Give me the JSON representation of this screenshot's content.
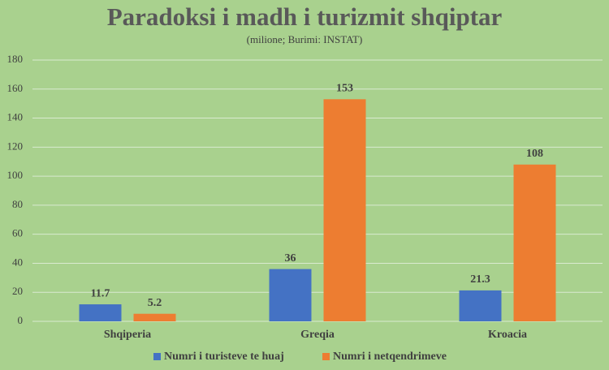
{
  "chart_data": {
    "type": "bar",
    "title": "Paradoksi i madh i turizmit shqiptar",
    "subtitle": "(milione; Burimi: INSTAT)",
    "categories": [
      "Shqiperia",
      "Greqia",
      "Kroacia"
    ],
    "series": [
      {
        "name": "Numri i turisteve te huaj",
        "color": "#4472c4",
        "values": [
          11.7,
          36,
          21.3
        ]
      },
      {
        "name": "Numri i netqendrimeve",
        "color": "#ed7d31",
        "values": [
          5.2,
          153,
          108
        ]
      }
    ],
    "ylim": [
      0,
      180
    ],
    "yticks": [
      0,
      20,
      40,
      60,
      80,
      100,
      120,
      140,
      160,
      180
    ],
    "grid": true,
    "legend": "bottom"
  }
}
